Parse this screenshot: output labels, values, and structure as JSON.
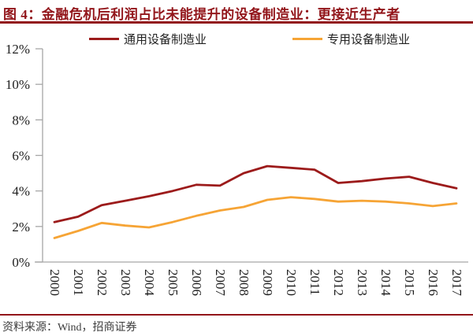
{
  "figure": {
    "source": "资料来源：Wind，招商证券"
  },
  "chart_data": {
    "type": "line",
    "title": "图 4：金融危机后利润占比未能提升的设备制造业：更接近生产者",
    "categories": [
      "2000",
      "2001",
      "2002",
      "2003",
      "2004",
      "2005",
      "2006",
      "2007",
      "2008",
      "2009",
      "2010",
      "2011",
      "2012",
      "2013",
      "2014",
      "2015",
      "2016",
      "2017"
    ],
    "series": [
      {
        "name": "通用设备制造业",
        "color": "#9C1B1B",
        "values": [
          2.25,
          2.55,
          3.2,
          3.45,
          3.7,
          4.0,
          4.35,
          4.3,
          5.0,
          5.4,
          5.3,
          5.2,
          4.45,
          4.55,
          4.7,
          4.8,
          4.45,
          4.15
        ]
      },
      {
        "name": "专用设备制造业",
        "color": "#F6A435",
        "values": [
          1.35,
          1.75,
          2.2,
          2.05,
          1.95,
          2.25,
          2.6,
          2.9,
          3.1,
          3.5,
          3.65,
          3.55,
          3.4,
          3.45,
          3.4,
          3.3,
          3.15,
          3.3
        ]
      }
    ],
    "xlabel": "",
    "ylabel": "",
    "y_unit": "%",
    "ylim": [
      0,
      12
    ],
    "y_ticks": [
      "0%",
      "2%",
      "4%",
      "6%",
      "8%",
      "10%",
      "12%"
    ],
    "grid": false,
    "legend_position": "top"
  },
  "colors": {
    "accent_red": "#92151A",
    "axis_gray": "#A6A6A6",
    "tick_text": "#1F1F1F",
    "source_text": "#3D3D3D"
  }
}
